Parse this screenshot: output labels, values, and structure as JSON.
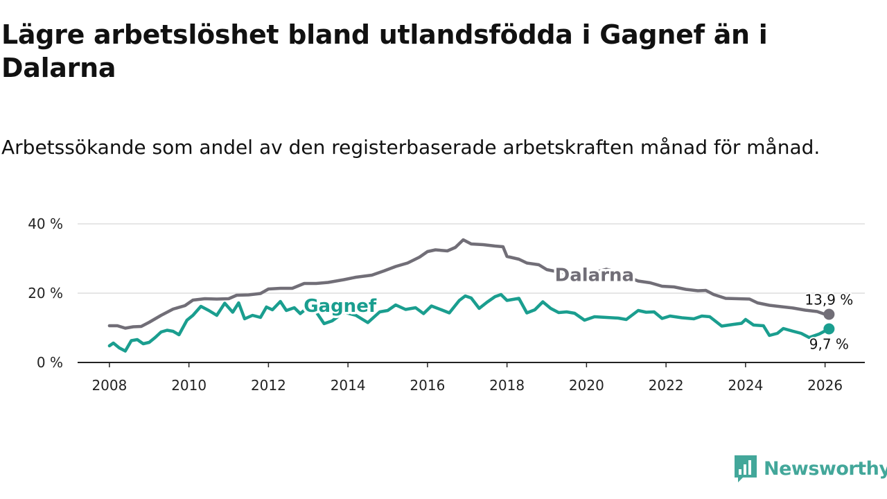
{
  "title": "Lägre arbetslöshet bland utlandsfödda i Gagnef än i Dalarna",
  "subtitle": "Arbetssökande som andel av den registerbaserade arbetskraften månad för månad.",
  "brand": "Newsworthy",
  "colors": {
    "dalarna": "#716e77",
    "gagnef": "#1a9e8f",
    "grid": "#dddddd",
    "axis": "#222222",
    "brand": "#43a79a"
  },
  "chart_data": {
    "type": "line",
    "title": "Lägre arbetslöshet bland utlandsfödda i Gagnef än i Dalarna",
    "subtitle": "Arbetssökande som andel av den registerbaserade arbetskraften månad för månad.",
    "xlabel": "",
    "ylabel": "",
    "xlim": [
      2007.2,
      2027.0
    ],
    "ylim": [
      0,
      40
    ],
    "x_ticks": [
      2008,
      2010,
      2012,
      2014,
      2016,
      2018,
      2020,
      2022,
      2024,
      2026
    ],
    "x_tick_labels": [
      "2008",
      "2010",
      "2012",
      "2014",
      "2016",
      "2018",
      "2020",
      "2022",
      "2024",
      "2026"
    ],
    "y_ticks": [
      0,
      20,
      40
    ],
    "y_tick_labels": [
      "0 %",
      "20 %",
      "40 %"
    ],
    "grid": true,
    "series": [
      {
        "name": "Dalarna",
        "color": "#716e77",
        "end_label": "13,9 %",
        "label_at": [
          2020.2,
          25
        ],
        "points": [
          [
            2008.0,
            10.6
          ],
          [
            2008.2,
            10.6
          ],
          [
            2008.4,
            9.9
          ],
          [
            2008.6,
            10.3
          ],
          [
            2008.8,
            10.4
          ],
          [
            2009.0,
            11.6
          ],
          [
            2009.3,
            13.6
          ],
          [
            2009.6,
            15.4
          ],
          [
            2009.9,
            16.4
          ],
          [
            2010.1,
            18.0
          ],
          [
            2010.4,
            18.4
          ],
          [
            2010.7,
            18.3
          ],
          [
            2011.0,
            18.4
          ],
          [
            2011.2,
            19.4
          ],
          [
            2011.5,
            19.5
          ],
          [
            2011.8,
            19.9
          ],
          [
            2012.0,
            21.2
          ],
          [
            2012.3,
            21.4
          ],
          [
            2012.6,
            21.4
          ],
          [
            2012.9,
            22.8
          ],
          [
            2013.2,
            22.8
          ],
          [
            2013.5,
            23.1
          ],
          [
            2013.9,
            23.9
          ],
          [
            2014.2,
            24.6
          ],
          [
            2014.6,
            25.2
          ],
          [
            2014.9,
            26.4
          ],
          [
            2015.2,
            27.7
          ],
          [
            2015.5,
            28.7
          ],
          [
            2015.8,
            30.4
          ],
          [
            2016.0,
            32.0
          ],
          [
            2016.2,
            32.5
          ],
          [
            2016.5,
            32.2
          ],
          [
            2016.7,
            33.2
          ],
          [
            2016.9,
            35.4
          ],
          [
            2017.1,
            34.2
          ],
          [
            2017.4,
            34.0
          ],
          [
            2017.7,
            33.6
          ],
          [
            2017.9,
            33.4
          ],
          [
            2018.0,
            30.6
          ],
          [
            2018.3,
            29.8
          ],
          [
            2018.5,
            28.7
          ],
          [
            2018.8,
            28.2
          ],
          [
            2019.0,
            26.8
          ],
          [
            2019.3,
            26.1
          ],
          [
            2019.6,
            25.7
          ],
          [
            2019.9,
            25.7
          ],
          [
            2020.2,
            26.0
          ],
          [
            2020.5,
            26.9
          ],
          [
            2020.8,
            26.0
          ],
          [
            2021.0,
            24.8
          ],
          [
            2021.3,
            23.5
          ],
          [
            2021.6,
            23.0
          ],
          [
            2021.9,
            22.0
          ],
          [
            2022.2,
            21.8
          ],
          [
            2022.5,
            21.1
          ],
          [
            2022.8,
            20.7
          ],
          [
            2023.0,
            20.8
          ],
          [
            2023.2,
            19.6
          ],
          [
            2023.5,
            18.5
          ],
          [
            2023.8,
            18.4
          ],
          [
            2024.1,
            18.3
          ],
          [
            2024.3,
            17.2
          ],
          [
            2024.6,
            16.5
          ],
          [
            2024.9,
            16.1
          ],
          [
            2025.2,
            15.7
          ],
          [
            2025.5,
            15.1
          ],
          [
            2025.8,
            14.7
          ],
          [
            2026.0,
            13.9
          ],
          [
            2026.1,
            13.9
          ]
        ]
      },
      {
        "name": "Gagnef",
        "color": "#1a9e8f",
        "end_label": "9,7 %",
        "label_at": [
          2013.8,
          16.1
        ],
        "points": [
          [
            2008.0,
            4.8
          ],
          [
            2008.1,
            5.6
          ],
          [
            2008.25,
            4.2
          ],
          [
            2008.4,
            3.3
          ],
          [
            2008.55,
            6.3
          ],
          [
            2008.7,
            6.6
          ],
          [
            2008.85,
            5.4
          ],
          [
            2009.0,
            5.8
          ],
          [
            2009.15,
            7.2
          ],
          [
            2009.3,
            8.8
          ],
          [
            2009.45,
            9.3
          ],
          [
            2009.6,
            9.0
          ],
          [
            2009.75,
            8.0
          ],
          [
            2009.95,
            12.2
          ],
          [
            2010.1,
            13.6
          ],
          [
            2010.3,
            16.2
          ],
          [
            2010.5,
            15.0
          ],
          [
            2010.7,
            13.6
          ],
          [
            2010.9,
            17.1
          ],
          [
            2011.1,
            14.5
          ],
          [
            2011.25,
            17.2
          ],
          [
            2011.4,
            12.6
          ],
          [
            2011.6,
            13.6
          ],
          [
            2011.8,
            13.0
          ],
          [
            2011.95,
            16.0
          ],
          [
            2012.1,
            15.2
          ],
          [
            2012.3,
            17.6
          ],
          [
            2012.45,
            15.0
          ],
          [
            2012.65,
            15.8
          ],
          [
            2012.8,
            14.1
          ],
          [
            2013.0,
            16.0
          ],
          [
            2013.2,
            14.6
          ],
          [
            2013.4,
            11.2
          ],
          [
            2013.6,
            12.0
          ],
          [
            2013.9,
            14.5
          ],
          [
            2014.2,
            13.6
          ],
          [
            2014.5,
            11.5
          ],
          [
            2014.8,
            14.6
          ],
          [
            2015.0,
            15.0
          ],
          [
            2015.2,
            16.6
          ],
          [
            2015.45,
            15.3
          ],
          [
            2015.7,
            15.8
          ],
          [
            2015.9,
            14.1
          ],
          [
            2016.1,
            16.3
          ],
          [
            2016.35,
            15.2
          ],
          [
            2016.55,
            14.3
          ],
          [
            2016.8,
            17.9
          ],
          [
            2016.95,
            19.2
          ],
          [
            2017.1,
            18.6
          ],
          [
            2017.3,
            15.6
          ],
          [
            2017.5,
            17.4
          ],
          [
            2017.7,
            19.0
          ],
          [
            2017.85,
            19.6
          ],
          [
            2018.0,
            17.9
          ],
          [
            2018.3,
            18.5
          ],
          [
            2018.5,
            14.3
          ],
          [
            2018.7,
            15.2
          ],
          [
            2018.9,
            17.5
          ],
          [
            2019.1,
            15.6
          ],
          [
            2019.3,
            14.4
          ],
          [
            2019.5,
            14.6
          ],
          [
            2019.7,
            14.2
          ],
          [
            2019.95,
            12.2
          ],
          [
            2020.2,
            13.2
          ],
          [
            2020.5,
            13.0
          ],
          [
            2020.8,
            12.8
          ],
          [
            2021.0,
            12.4
          ],
          [
            2021.3,
            15.0
          ],
          [
            2021.5,
            14.5
          ],
          [
            2021.7,
            14.6
          ],
          [
            2021.9,
            12.7
          ],
          [
            2022.1,
            13.4
          ],
          [
            2022.4,
            12.9
          ],
          [
            2022.7,
            12.6
          ],
          [
            2022.9,
            13.4
          ],
          [
            2023.1,
            13.2
          ],
          [
            2023.4,
            10.5
          ],
          [
            2023.7,
            11.0
          ],
          [
            2023.9,
            11.3
          ],
          [
            2024.0,
            12.4
          ],
          [
            2024.2,
            10.8
          ],
          [
            2024.45,
            10.6
          ],
          [
            2024.6,
            7.8
          ],
          [
            2024.8,
            8.4
          ],
          [
            2024.95,
            9.8
          ],
          [
            2025.2,
            9.0
          ],
          [
            2025.4,
            8.4
          ],
          [
            2025.6,
            7.2
          ],
          [
            2025.85,
            8.2
          ],
          [
            2026.1,
            9.7
          ]
        ]
      }
    ]
  }
}
